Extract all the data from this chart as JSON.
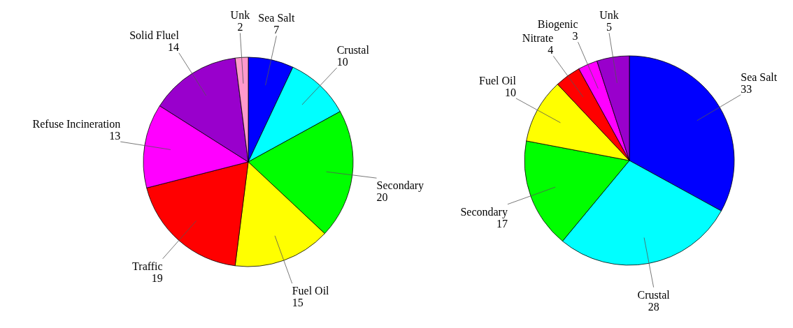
{
  "chart_data": [
    {
      "type": "pie",
      "categories": [
        "Sea Salt",
        "Crustal",
        "Secondary",
        "Fuel Oil",
        "Traffic",
        "Refuse Incineration",
        "Solid Fluel",
        "Unk"
      ],
      "values": [
        7,
        10,
        20,
        15,
        19,
        13,
        14,
        2
      ],
      "colors": [
        "#0000ff",
        "#00ffff",
        "#00ff00",
        "#ffff00",
        "#ff0000",
        "#ff00ff",
        "#9900cc",
        "#ff99cc"
      ],
      "data_labels": true
    },
    {
      "type": "pie",
      "categories": [
        "Sea Salt",
        "Crustal",
        "Secondary",
        "Fuel Oil",
        "Nitrate",
        "Biogenic",
        "Unk"
      ],
      "values": [
        33,
        28,
        17,
        10,
        4,
        3,
        5
      ],
      "colors": [
        "#0000ff",
        "#00ffff",
        "#00ff00",
        "#ffff00",
        "#ff0000",
        "#ff00ff",
        "#9900cc"
      ],
      "data_labels": true
    }
  ]
}
